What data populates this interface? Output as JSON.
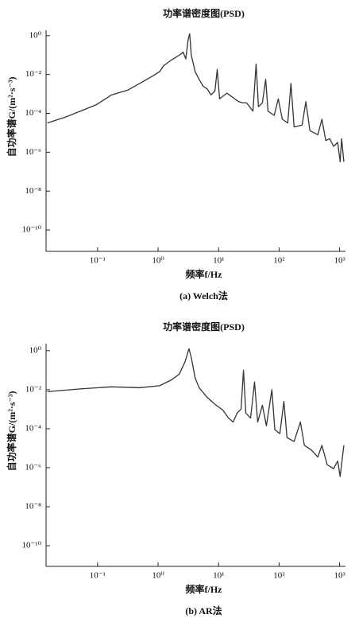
{
  "chart_data": [
    {
      "type": "line",
      "title": "功率谱密度图(PSD)",
      "x_label": "频率f/Hz",
      "y_label": "自功率谱G/(m²·s⁻³)",
      "caption": "(a) Welch法",
      "color": "#333333",
      "log_x": true,
      "log_y": true,
      "xlim": [
        0.0141,
        1250
      ],
      "ylim": [
        7.9e-12,
        1.9
      ],
      "xticks": [
        {
          "value": 0.1,
          "label": "10⁻¹"
        },
        {
          "value": 1,
          "label": "10⁰"
        },
        {
          "value": 10,
          "label": "10¹"
        },
        {
          "value": 100,
          "label": "10²"
        },
        {
          "value": 1000,
          "label": "10³"
        }
      ],
      "yticks": [
        {
          "value": 1,
          "label": "10⁰"
        },
        {
          "value": 0.01,
          "label": "10⁻²"
        },
        {
          "value": 0.0001,
          "label": "10⁻⁴"
        },
        {
          "value": 1e-06,
          "label": "10⁻⁶"
        },
        {
          "value": 1e-08,
          "label": "10⁻⁸"
        },
        {
          "value": 1e-10,
          "label": "10⁻¹⁰"
        }
      ],
      "x": [
        0.0148,
        0.029,
        0.052,
        0.096,
        0.17,
        0.32,
        0.5,
        0.79,
        1.06,
        1.23,
        1.67,
        2.25,
        2.6,
        2.87,
        3.14,
        3.33,
        3.54,
        4.1,
        4.77,
        5.56,
        6.5,
        7.5,
        8.7,
        9.5,
        10.4,
        13.7,
        18.5,
        21.5,
        25,
        29,
        37,
        41.7,
        45.6,
        53,
        60,
        65.6,
        83,
        97,
        113,
        139,
        157,
        177,
        240,
        277,
        323,
        436,
        510,
        590,
        686,
        795,
        930,
        1020,
        1080,
        1175
      ],
      "values": [
        3.2e-05,
        6.3e-05,
        0.00013,
        0.00028,
        0.00089,
        0.0016,
        0.0035,
        0.0079,
        0.014,
        0.028,
        0.056,
        0.1,
        0.14,
        0.063,
        0.63,
        1.26,
        0.1,
        0.014,
        0.0056,
        0.0025,
        0.0018,
        0.00089,
        0.0014,
        0.018,
        0.00056,
        0.0011,
        0.00056,
        0.0004,
        0.00035,
        0.00035,
        0.00013,
        0.035,
        0.00022,
        0.00035,
        0.0056,
        0.00013,
        7.9e-05,
        0.00056,
        5e-05,
        3.2e-05,
        0.0035,
        2e-05,
        2.5e-05,
        0.0004,
        1.3e-05,
        7.9e-06,
        5e-05,
        4e-06,
        5e-06,
        2e-06,
        3.2e-06,
        3.2e-07,
        5e-06,
        3.2e-07
      ]
    },
    {
      "type": "line",
      "title": "功率谱密度图(PSD)",
      "x_label": "频率f/Hz",
      "y_label": "自功率谱G/(m²·s⁻³)",
      "caption": "(b) AR法",
      "color": "#333333",
      "log_x": true,
      "log_y": true,
      "xlim": [
        0.0141,
        1250
      ],
      "ylim": [
        8.7e-12,
        2.3
      ],
      "xticks": [
        {
          "value": 0.1,
          "label": "10⁻¹"
        },
        {
          "value": 1,
          "label": "10⁰"
        },
        {
          "value": 10,
          "label": "10¹"
        },
        {
          "value": 100,
          "label": "10²"
        },
        {
          "value": 1000,
          "label": "10³"
        }
      ],
      "yticks": [
        {
          "value": 1,
          "label": "10⁰"
        },
        {
          "value": 0.01,
          "label": "10⁻²"
        },
        {
          "value": 0.0001,
          "label": "10⁻⁴"
        },
        {
          "value": 1e-06,
          "label": "10⁻⁶"
        },
        {
          "value": 1e-08,
          "label": "10⁻⁸"
        },
        {
          "value": 1e-10,
          "label": "10⁻¹⁰"
        }
      ],
      "x": [
        0.0148,
        0.052,
        0.17,
        0.5,
        1.06,
        1.67,
        2.25,
        2.8,
        3.24,
        3.54,
        4.1,
        4.77,
        6.5,
        8.7,
        11.8,
        14.6,
        17.4,
        20.2,
        23.5,
        25.8,
        28.2,
        33.8,
        39.3,
        44.3,
        53,
        61.7,
        76,
        85,
        103,
        120,
        135,
        177,
        225,
        262,
        344,
        436,
        510,
        625,
        795,
        930,
        1020,
        1175
      ],
      "values": [
        0.0079,
        0.011,
        0.014,
        0.0126,
        0.016,
        0.032,
        0.063,
        0.28,
        1.26,
        0.45,
        0.04,
        0.0126,
        0.004,
        0.0018,
        0.00089,
        0.00035,
        0.00022,
        0.00063,
        0.001,
        0.1,
        0.00063,
        0.00035,
        0.025,
        0.00022,
        0.0016,
        0.00014,
        0.01,
        8.9e-05,
        5.6e-05,
        0.0025,
        3.5e-05,
        2.2e-05,
        0.00022,
        1.4e-05,
        7.9e-06,
        3.5e-06,
        1.4e-05,
        1.4e-06,
        8.9e-07,
        2.2e-06,
        3.5e-07,
        1.4e-05
      ]
    }
  ]
}
